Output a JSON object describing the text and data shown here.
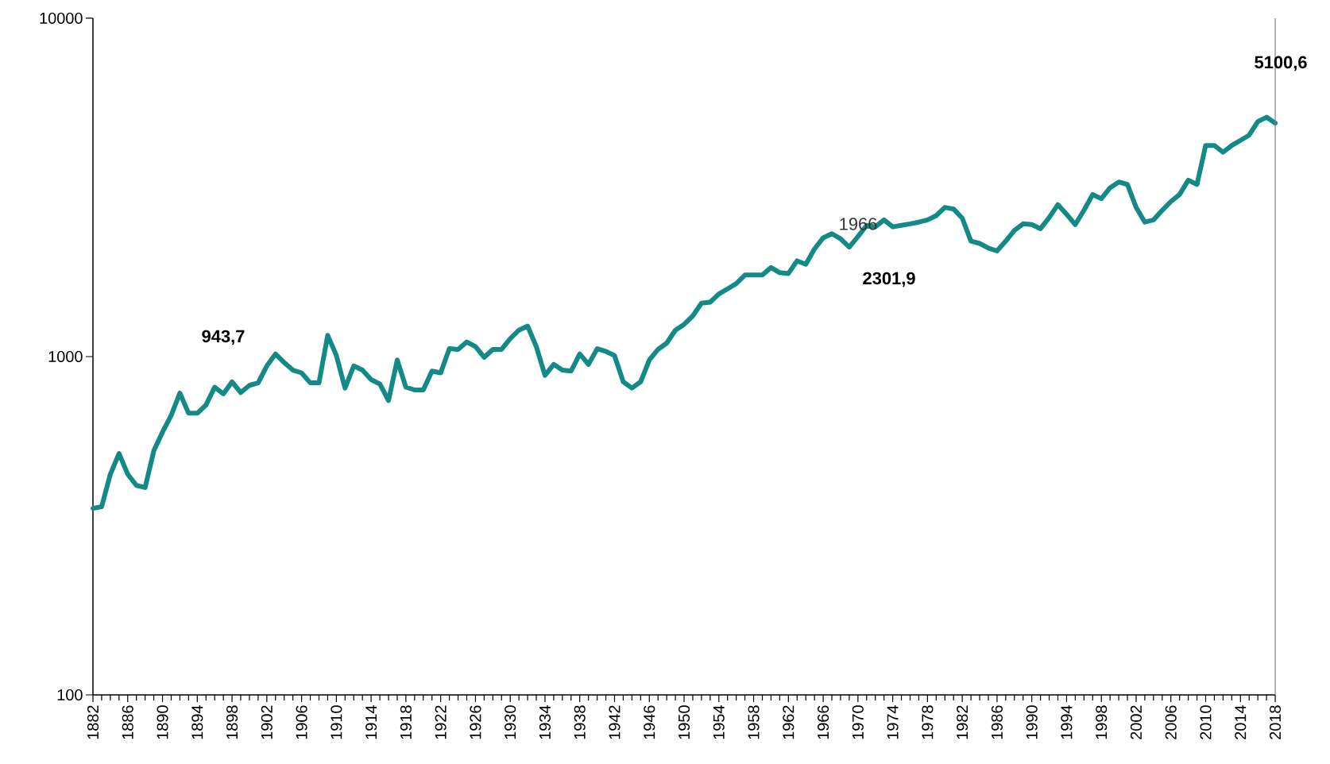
{
  "chart_data": {
    "type": "line",
    "x": [
      1882,
      1883,
      1884,
      1885,
      1886,
      1887,
      1888,
      1889,
      1890,
      1891,
      1892,
      1893,
      1894,
      1895,
      1896,
      1897,
      1898,
      1899,
      1900,
      1901,
      1902,
      1903,
      1904,
      1905,
      1906,
      1907,
      1908,
      1909,
      1910,
      1911,
      1912,
      1913,
      1914,
      1915,
      1916,
      1917,
      1918,
      1919,
      1920,
      1921,
      1922,
      1923,
      1924,
      1925,
      1926,
      1927,
      1928,
      1929,
      1930,
      1931,
      1932,
      1933,
      1934,
      1935,
      1936,
      1937,
      1938,
      1939,
      1940,
      1941,
      1942,
      1943,
      1944,
      1945,
      1946,
      1947,
      1948,
      1949,
      1950,
      1951,
      1952,
      1953,
      1954,
      1955,
      1956,
      1957,
      1958,
      1959,
      1960,
      1961,
      1962,
      1963,
      1964,
      1965,
      1966,
      1967,
      1968,
      1969,
      1970,
      1971,
      1972,
      1973,
      1974,
      1975,
      1976,
      1977,
      1978,
      1979,
      1980,
      1981,
      1982,
      1983,
      1984,
      1985,
      1986,
      1987,
      1988,
      1989,
      1990,
      1991,
      1992,
      1993,
      1994,
      1995,
      1996,
      1997,
      1998,
      1999,
      2000,
      2001,
      2002,
      2003,
      2004,
      2005,
      2006,
      2007,
      2008,
      2009,
      2010,
      2011,
      2012,
      2013,
      2014,
      2015,
      2016,
      2017,
      2018
    ],
    "series": [
      {
        "color": "#138a87",
        "values": [
          356,
          360,
          449,
          517,
          449,
          416,
          410,
          527,
          598,
          671,
          780,
          680,
          680,
          719,
          812,
          776,
          842,
          783,
          822,
          836,
          938,
          1018,
          960,
          912,
          895,
          836,
          836,
          1156,
          1007,
          807,
          938,
          912,
          855,
          830,
          741,
          977,
          812,
          797,
          797,
          906,
          895,
          1055,
          1050,
          1105,
          1070,
          995,
          1050,
          1050,
          1130,
          1197,
          1231,
          1070,
          880,
          948,
          912,
          906,
          1018,
          948,
          1055,
          1036,
          1007,
          842,
          807,
          842,
          977,
          1050,
          1096,
          1197,
          1245,
          1319,
          1438,
          1448,
          1531,
          1585,
          1643,
          1742,
          1742,
          1742,
          1833,
          1770,
          1760,
          1919,
          1875,
          2080,
          2244,
          2308,
          2230,
          2106,
          2263,
          2443,
          2418,
          2535,
          2418,
          2443,
          2468,
          2497,
          2535,
          2610,
          2761,
          2730,
          2565,
          2194,
          2160,
          2093,
          2052,
          2194,
          2361,
          2468,
          2455,
          2388,
          2576,
          2813,
          2634,
          2455,
          2706,
          3013,
          2930,
          3155,
          3281,
          3227,
          2761,
          2497,
          2535,
          2706,
          2873,
          3013,
          3322,
          3227,
          4207,
          4207,
          4016,
          4207,
          4355,
          4512,
          4950,
          5100,
          4900
        ]
      }
    ],
    "log": "y",
    "xlim": [
      1882,
      2018
    ],
    "ylim": [
      100,
      10000
    ],
    "yticks": [
      100,
      1000,
      10000
    ],
    "xticks": [
      1882,
      1886,
      1890,
      1894,
      1898,
      1902,
      1906,
      1910,
      1914,
      1918,
      1922,
      1926,
      1930,
      1934,
      1938,
      1942,
      1946,
      1950,
      1954,
      1958,
      1962,
      1966,
      1970,
      1974,
      1978,
      1982,
      1986,
      1990,
      1994,
      1998,
      2002,
      2006,
      2010,
      2014,
      2018
    ],
    "annotations": [
      "943,7",
      "1966",
      "2301,9",
      "5100,6"
    ],
    "grid": false,
    "marker": "none",
    "line_style": "solid"
  }
}
